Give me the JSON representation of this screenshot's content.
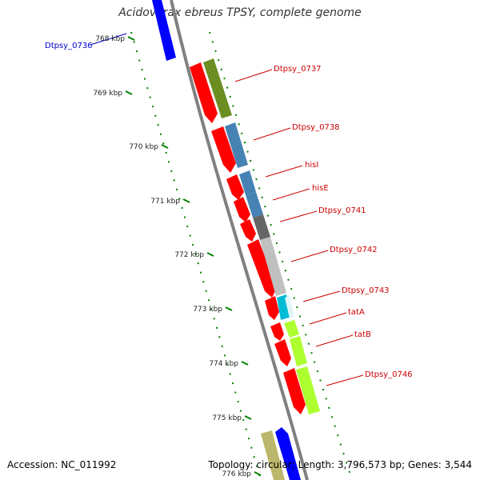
{
  "title": "Acidovorax ebreus TPSY, complete genome",
  "footer": {
    "accession_label": "Accession:",
    "accession": "NC_011992",
    "topology_text": "Topology: circular; Length: 3,796,573 bp; Genes: 3,544"
  },
  "colors": {
    "forward_gene_cds": "#ff0000",
    "reverse_gene_blue": "#0000ff",
    "backbone": "#808080",
    "tick_dots": "#008000",
    "label_red": "#cc0000",
    "label_blue": "#0000cc"
  },
  "ticks": [
    {
      "label": "768 kbp"
    },
    {
      "label": "769 kbp"
    },
    {
      "label": "770 kbp"
    },
    {
      "label": "771 kbp"
    },
    {
      "label": "772 kbp"
    },
    {
      "label": "773 kbp"
    },
    {
      "label": "774 kbp"
    },
    {
      "label": "775 kbp"
    },
    {
      "label": "776 kbp"
    }
  ],
  "genes": [
    {
      "name": "Dtpsy_0736",
      "color": "#0000cc"
    },
    {
      "name": "Dtpsy_0737",
      "color": "#cc0000"
    },
    {
      "name": "Dtpsy_0738",
      "color": "#cc0000"
    },
    {
      "name": "hisI",
      "color": "#cc0000"
    },
    {
      "name": "hisE",
      "color": "#cc0000"
    },
    {
      "name": "Dtpsy_0741",
      "color": "#cc0000"
    },
    {
      "name": "Dtpsy_0742",
      "color": "#cc0000"
    },
    {
      "name": "Dtpsy_0743",
      "color": "#cc0000"
    },
    {
      "name": "tatA",
      "color": "#cc0000"
    },
    {
      "name": "tatB",
      "color": "#cc0000"
    },
    {
      "name": "Dtpsy_0746",
      "color": "#cc0000"
    }
  ]
}
